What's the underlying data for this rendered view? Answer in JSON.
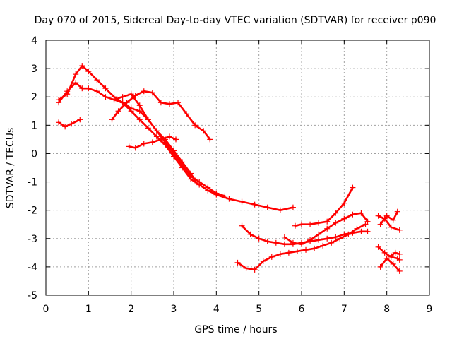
{
  "chart_data": {
    "type": "scatter",
    "title": "Day 070 of 2015, Sidereal Day-to-day VTEC variation (SDTVAR) for receiver p090",
    "xlabel": "GPS time / hours",
    "ylabel": "SDTVAR / TECUs",
    "xlim": [
      0,
      9
    ],
    "ylim": [
      -5,
      4
    ],
    "xticks": [
      "0",
      "1",
      "2",
      "3",
      "4",
      "5",
      "6",
      "7",
      "8",
      "9"
    ],
    "yticks": [
      "4",
      "3",
      "2",
      "1",
      "0",
      "-1",
      "-2",
      "-3",
      "-4",
      "-5"
    ],
    "grid": true,
    "marker": "+",
    "color": "#ff0000",
    "series": [
      {
        "name": "track-1",
        "x": [
          0.3,
          0.5,
          0.7,
          0.85,
          1.0,
          1.2,
          1.4,
          1.6,
          1.8,
          2.0,
          2.2,
          2.4,
          2.6,
          2.8,
          3.0,
          3.2,
          3.4,
          3.6,
          3.8,
          4.0,
          4.3,
          4.6,
          4.9,
          5.2,
          5.5,
          5.8
        ],
        "y": [
          1.8,
          2.2,
          2.5,
          2.3,
          2.3,
          2.2,
          2.0,
          1.9,
          1.8,
          1.5,
          1.2,
          0.9,
          0.6,
          0.3,
          -0.1,
          -0.5,
          -0.9,
          -1.1,
          -1.3,
          -1.45,
          -1.6,
          -1.7,
          -1.8,
          -1.9,
          -2.0,
          -1.9
        ]
      },
      {
        "name": "track-2",
        "x": [
          0.3,
          0.5,
          0.7,
          0.85,
          1.0,
          1.2,
          1.4,
          1.6,
          1.8,
          2.0,
          2.2,
          2.4,
          2.6,
          2.8,
          3.0,
          3.2,
          3.4,
          3.6,
          3.8,
          4.0,
          4.2
        ],
        "y": [
          1.9,
          2.1,
          2.8,
          3.1,
          2.9,
          2.6,
          2.3,
          2.0,
          1.8,
          1.6,
          1.5,
          1.2,
          0.8,
          0.4,
          0.0,
          -0.4,
          -0.8,
          -1.0,
          -1.2,
          -1.4,
          -1.5
        ]
      },
      {
        "name": "track-3",
        "x": [
          0.3,
          0.45,
          0.6,
          0.8
        ],
        "y": [
          1.1,
          0.95,
          1.05,
          1.2
        ]
      },
      {
        "name": "track-4",
        "x": [
          1.55,
          1.7,
          1.9,
          2.1,
          2.3,
          2.5,
          2.7,
          2.9,
          3.1,
          3.3,
          3.5,
          3.7,
          3.85
        ],
        "y": [
          1.2,
          1.5,
          1.8,
          2.05,
          2.2,
          2.15,
          1.8,
          1.75,
          1.8,
          1.4,
          1.0,
          0.8,
          0.5
        ]
      },
      {
        "name": "track-5",
        "x": [
          1.6,
          1.8,
          2.0,
          2.2,
          2.4,
          2.6,
          2.8,
          3.0,
          3.2,
          3.4,
          3.5
        ],
        "y": [
          1.9,
          2.0,
          2.1,
          1.7,
          1.2,
          0.8,
          0.5,
          0.1,
          -0.3,
          -0.7,
          -0.95
        ]
      },
      {
        "name": "track-6",
        "x": [
          1.95,
          2.1,
          2.3,
          2.5,
          2.7,
          2.9,
          3.05
        ],
        "y": [
          0.25,
          0.2,
          0.35,
          0.4,
          0.5,
          0.6,
          0.5
        ]
      },
      {
        "name": "track-7",
        "x": [
          4.6,
          4.8,
          5.0,
          5.2,
          5.4,
          5.6,
          5.8,
          6.0,
          6.2,
          6.4,
          6.6,
          6.8,
          7.0,
          7.2,
          7.4,
          7.55
        ],
        "y": [
          -2.55,
          -2.85,
          -3.0,
          -3.1,
          -3.15,
          -3.2,
          -3.2,
          -3.15,
          -3.1,
          -3.05,
          -3.0,
          -2.95,
          -2.85,
          -2.8,
          -2.75,
          -2.75
        ]
      },
      {
        "name": "track-8",
        "x": [
          4.5,
          4.7,
          4.9,
          5.1,
          5.3,
          5.5,
          5.7,
          5.9,
          6.1,
          6.3,
          6.5,
          6.7,
          6.9,
          7.1,
          7.3,
          7.5
        ],
        "y": [
          -3.85,
          -4.05,
          -4.1,
          -3.8,
          -3.65,
          -3.55,
          -3.5,
          -3.45,
          -3.4,
          -3.35,
          -3.25,
          -3.15,
          -3.0,
          -2.85,
          -2.65,
          -2.5
        ]
      },
      {
        "name": "track-9",
        "x": [
          5.6,
          5.8,
          6.0,
          6.2,
          6.4,
          6.6,
          6.8,
          7.0,
          7.2,
          7.4,
          7.55
        ],
        "y": [
          -2.95,
          -3.15,
          -3.2,
          -3.05,
          -2.85,
          -2.65,
          -2.45,
          -2.3,
          -2.15,
          -2.1,
          -2.4
        ]
      },
      {
        "name": "track-10",
        "x": [
          5.85,
          6.0,
          6.2,
          6.4,
          6.6,
          6.8,
          7.0,
          7.2
        ],
        "y": [
          -2.55,
          -2.5,
          -2.5,
          -2.45,
          -2.4,
          -2.1,
          -1.75,
          -1.2
        ]
      },
      {
        "name": "track-11",
        "x": [
          7.8,
          7.95,
          8.1,
          8.3
        ],
        "y": [
          -2.2,
          -2.3,
          -2.6,
          -2.7
        ]
      },
      {
        "name": "track-12",
        "x": [
          7.85,
          8.0,
          8.15,
          8.25
        ],
        "y": [
          -2.5,
          -2.2,
          -2.35,
          -2.05
        ]
      },
      {
        "name": "track-13",
        "x": [
          7.8,
          7.95,
          8.1,
          8.25,
          8.3
        ],
        "y": [
          -3.3,
          -3.5,
          -3.65,
          -3.7,
          -3.75
        ]
      },
      {
        "name": "track-14",
        "x": [
          7.85,
          8.0,
          8.15,
          8.3
        ],
        "y": [
          -4.0,
          -3.7,
          -3.9,
          -4.15
        ]
      },
      {
        "name": "track-15",
        "x": [
          8.1,
          8.2,
          8.3
        ],
        "y": [
          -3.6,
          -3.5,
          -3.55
        ]
      }
    ]
  }
}
